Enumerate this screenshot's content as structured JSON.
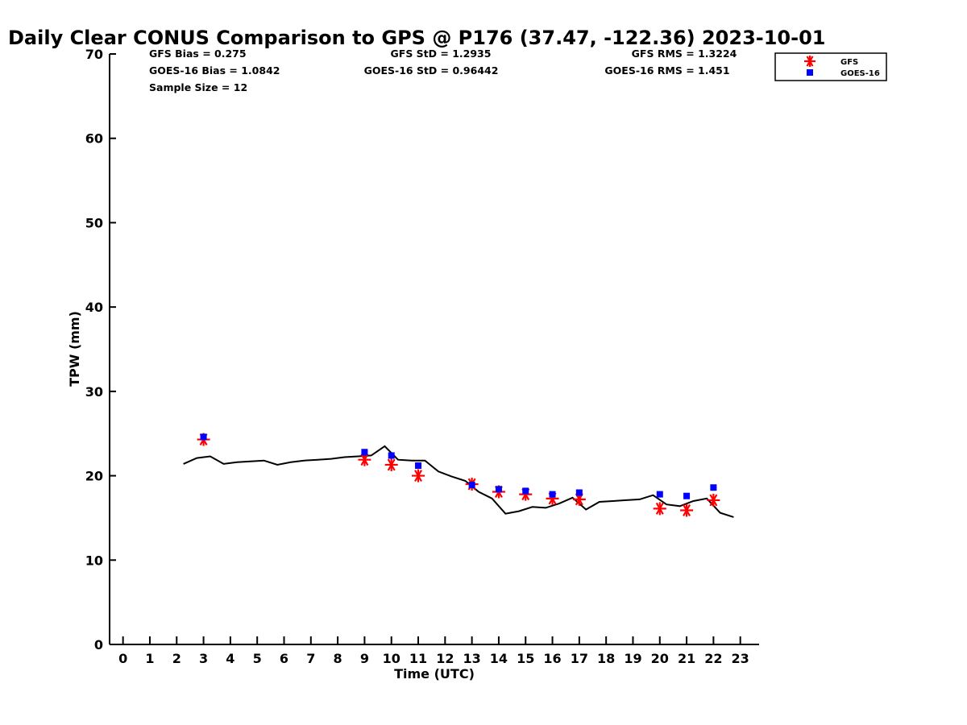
{
  "chart_data": {
    "type": "scatter",
    "title": "Daily Clear CONUS Comparison to GPS @ P176 (37.47, -122.36) 2023-10-01",
    "xlabel": "Time (UTC)",
    "ylabel": "TPW (mm)",
    "xlim": [
      -0.5,
      23.7
    ],
    "ylim": [
      0,
      70
    ],
    "x_ticks": [
      0,
      1,
      2,
      3,
      4,
      5,
      6,
      7,
      8,
      9,
      10,
      11,
      12,
      13,
      14,
      15,
      16,
      17,
      18,
      19,
      20,
      21,
      22,
      23
    ],
    "y_ticks": [
      0,
      10,
      20,
      30,
      40,
      50,
      60,
      70
    ],
    "grid": false,
    "legend_position": "top-right",
    "stats": {
      "gfs_bias": "GFS Bias = 0.275",
      "goes_bias": "GOES-16 Bias = 1.0842",
      "sample_size": "Sample Size = 12",
      "gfs_std": "GFS StD = 1.2935",
      "goes_std": "GOES-16 StD = 0.96442",
      "gfs_rms": "GFS RMS = 1.3224",
      "goes_rms": "GOES-16 RMS = 1.451"
    },
    "series": [
      {
        "name": "GFS",
        "marker": "asterisk",
        "color": "#ff0000",
        "x": [
          3,
          9,
          10,
          11,
          13,
          14,
          15,
          16,
          17,
          20,
          21,
          22
        ],
        "y": [
          24.3,
          21.9,
          21.3,
          20.0,
          19.0,
          18.1,
          17.8,
          17.3,
          17.2,
          16.1,
          15.9,
          17.1
        ]
      },
      {
        "name": "GOES-16",
        "marker": "square",
        "color": "#0000ff",
        "x": [
          3,
          9,
          10,
          11,
          13,
          14,
          15,
          16,
          17,
          20,
          21,
          22
        ],
        "y": [
          24.6,
          22.8,
          22.4,
          21.2,
          18.9,
          18.4,
          18.2,
          17.8,
          18.0,
          17.8,
          17.6,
          18.6
        ]
      },
      {
        "marker": "line",
        "color": "#000000",
        "x": [
          2.25,
          2.75,
          3.25,
          3.75,
          4.25,
          4.75,
          5.25,
          5.75,
          6.25,
          6.75,
          7.25,
          7.75,
          8.25,
          8.75,
          9.25,
          9.75,
          10.25,
          10.75,
          11.25,
          11.75,
          12.25,
          12.75,
          13.25,
          13.75,
          14.25,
          14.75,
          15.25,
          15.75,
          16.25,
          16.75,
          17.25,
          17.75,
          18.25,
          18.75,
          19.25,
          19.75,
          20.25,
          20.75,
          21.25,
          21.75,
          22.25,
          22.75
        ],
        "y": [
          21.4,
          22.1,
          22.3,
          21.4,
          21.6,
          21.7,
          21.8,
          21.3,
          21.6,
          21.8,
          21.9,
          22.0,
          22.2,
          22.3,
          22.4,
          23.5,
          21.9,
          21.8,
          21.8,
          20.5,
          19.9,
          19.4,
          18.1,
          17.3,
          15.5,
          15.8,
          16.3,
          16.2,
          16.7,
          17.4,
          16.0,
          16.9,
          17.0,
          17.1,
          17.2,
          17.7,
          16.6,
          16.4,
          17.0,
          17.3,
          15.6,
          15.1
        ]
      }
    ]
  }
}
